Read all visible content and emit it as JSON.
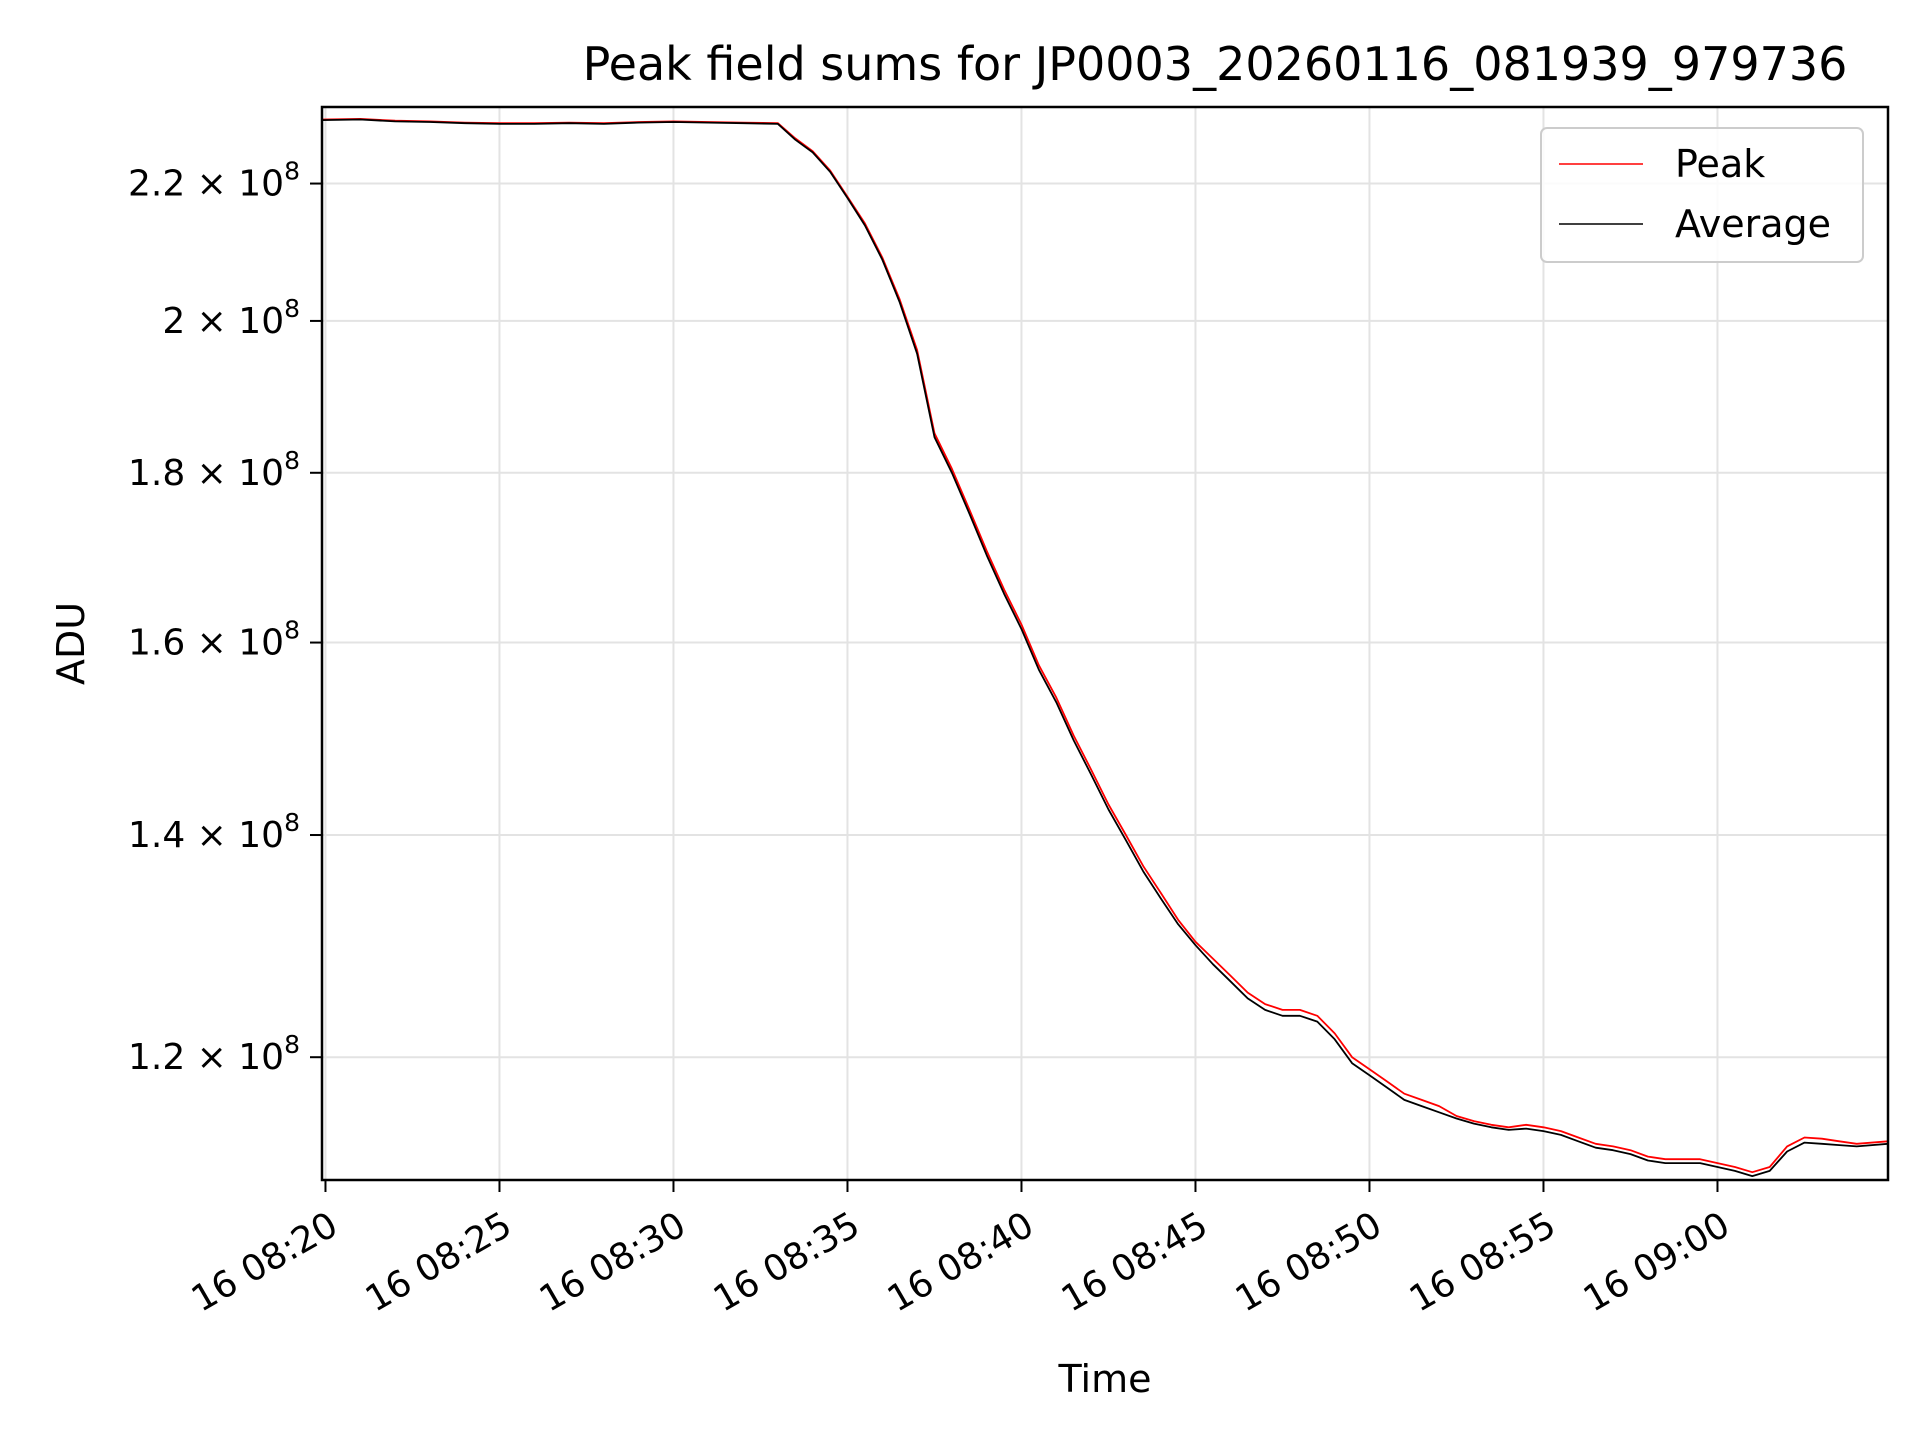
{
  "chart_data": {
    "type": "line",
    "title": "Peak field sums for JP0003_20260116_081939_979736",
    "xlabel": "Time",
    "ylabel": "ADU",
    "x_unit": "minutes after 16 08:00",
    "xlim": [
      19.9,
      64.9
    ],
    "ylim": [
      110200000.0,
      232000000.0
    ],
    "yscale": "log",
    "grid": true,
    "legend_position": "upper right",
    "x_ticks": [
      {
        "value": 20,
        "label": "16 08:20"
      },
      {
        "value": 25,
        "label": "16 08:25"
      },
      {
        "value": 30,
        "label": "16 08:30"
      },
      {
        "value": 35,
        "label": "16 08:35"
      },
      {
        "value": 40,
        "label": "16 08:40"
      },
      {
        "value": 45,
        "label": "16 08:45"
      },
      {
        "value": 50,
        "label": "16 08:50"
      },
      {
        "value": 55,
        "label": "16 08:55"
      },
      {
        "value": 60,
        "label": "16 09:00"
      }
    ],
    "y_ticks": [
      {
        "value": 120000000.0,
        "mantissa": "1.2",
        "exponent": "8"
      },
      {
        "value": 140000000.0,
        "mantissa": "1.4",
        "exponent": "8"
      },
      {
        "value": 160000000.0,
        "mantissa": "1.6",
        "exponent": "8"
      },
      {
        "value": 180000000.0,
        "mantissa": "1.8",
        "exponent": "8"
      },
      {
        "value": 200000000.0,
        "mantissa": "2",
        "exponent": "8"
      },
      {
        "value": 220000000.0,
        "mantissa": "2.2",
        "exponent": "8"
      }
    ],
    "x": [
      19.9,
      21.0,
      22.0,
      23.0,
      24.0,
      25.0,
      26.0,
      27.0,
      28.0,
      29.0,
      30.0,
      31.0,
      32.0,
      33.0,
      33.5,
      34.0,
      34.5,
      35.0,
      35.5,
      36.0,
      36.5,
      37.0,
      37.5,
      38.0,
      38.5,
      39.0,
      39.5,
      40.0,
      40.5,
      41.0,
      41.5,
      42.0,
      42.5,
      43.0,
      43.5,
      44.0,
      44.5,
      45.0,
      45.5,
      46.0,
      46.5,
      47.0,
      47.5,
      48.0,
      48.5,
      49.0,
      49.5,
      50.0,
      50.5,
      51.0,
      51.5,
      52.0,
      52.5,
      53.0,
      53.5,
      54.0,
      54.5,
      55.0,
      55.5,
      56.0,
      56.5,
      57.0,
      57.5,
      58.0,
      58.5,
      59.0,
      59.5,
      60.0,
      60.5,
      61.0,
      61.5,
      62.0,
      62.5,
      63.0,
      63.5,
      64.0,
      64.9
    ],
    "series": [
      {
        "name": "Peak",
        "color": "#ff0000",
        "values": [
          230000000.0,
          230100000.0,
          229800000.0,
          229700000.0,
          229500000.0,
          229400000.0,
          229400000.0,
          229500000.0,
          229400000.0,
          229600000.0,
          229700000.0,
          229600000.0,
          229500000.0,
          229400000.0,
          227000000.0,
          225000000.0,
          222000000.0,
          218000000.0,
          214000000.0,
          209000000.0,
          203000000.0,
          196000000.0,
          185000000.0,
          180500000.0,
          175500000.0,
          170500000.0,
          166000000.0,
          162000000.0,
          157500000.0,
          154000000.0,
          150000000.0,
          146500000.0,
          143000000.0,
          140000000.0,
          137000000.0,
          134500000.0,
          132000000.0,
          130000000.0,
          128500000.0,
          127000000.0,
          125500000.0,
          124500000.0,
          124000000.0,
          124000000.0,
          123500000.0,
          122000000.0,
          120000000.0,
          119000000.0,
          118000000.0,
          117000000.0,
          116500000.0,
          116000000.0,
          115200000.0,
          114800000.0,
          114500000.0,
          114300000.0,
          114500000.0,
          114300000.0,
          114000000.0,
          113500000.0,
          113000000.0,
          112800000.0,
          112500000.0,
          112000000.0,
          111800000.0,
          111800000.0,
          111800000.0,
          111500000.0,
          111200000.0,
          110800000.0,
          111200000.0,
          112800000.0,
          113500000.0,
          113400000.0,
          113200000.0,
          113000000.0,
          113200000.0
        ]
      },
      {
        "name": "Average",
        "color": "#000000",
        "values": [
          229900000.0,
          230000000.0,
          229700000.0,
          229600000.0,
          229400000.0,
          229300000.0,
          229300000.0,
          229400000.0,
          229300000.0,
          229500000.0,
          229600000.0,
          229500000.0,
          229400000.0,
          229300000.0,
          226800000.0,
          224800000.0,
          221800000.0,
          217800000.0,
          213700000.0,
          208700000.0,
          202600000.0,
          195500000.0,
          184500000.0,
          180000000.0,
          175000000.0,
          170000000.0,
          165500000.0,
          161500000.0,
          157000000.0,
          153500000.0,
          149500000.0,
          146000000.0,
          142500000.0,
          139500000.0,
          136500000.0,
          134000000.0,
          131600000.0,
          129700000.0,
          128000000.0,
          126500000.0,
          125000000.0,
          124000000.0,
          123500000.0,
          123500000.0,
          123000000.0,
          121500000.0,
          119500000.0,
          118500000.0,
          117500000.0,
          116500000.0,
          116000000.0,
          115500000.0,
          115000000.0,
          114600000.0,
          114300000.0,
          114100000.0,
          114200000.0,
          114000000.0,
          113700000.0,
          113200000.0,
          112700000.0,
          112500000.0,
          112200000.0,
          111700000.0,
          111500000.0,
          111500000.0,
          111500000.0,
          111200000.0,
          110900000.0,
          110500000.0,
          110900000.0,
          112400000.0,
          113100000.0,
          113000000.0,
          112900000.0,
          112800000.0,
          113000000.0
        ]
      }
    ]
  }
}
